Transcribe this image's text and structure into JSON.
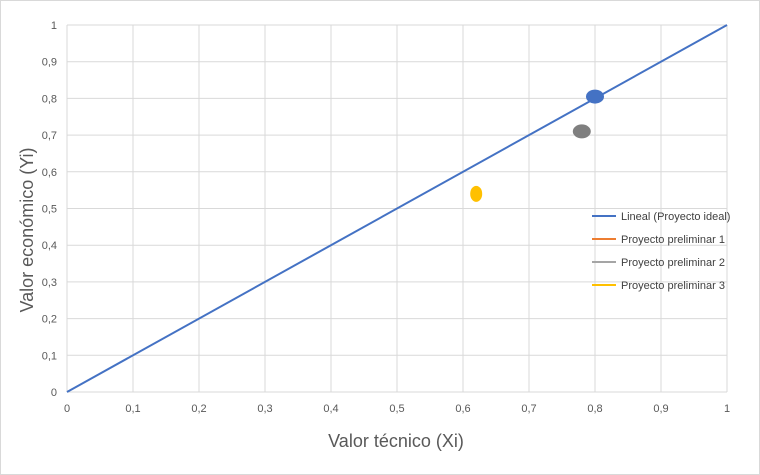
{
  "chart_data": {
    "type": "scatter",
    "title": "",
    "xlabel": "Valor técnico (Xi)",
    "ylabel": "Valor económico (Yi)",
    "xlim": [
      0,
      1
    ],
    "ylim": [
      0,
      1
    ],
    "xticks": [
      "0",
      "0,1",
      "0,2",
      "0,3",
      "0,4",
      "0,5",
      "0,6",
      "0,7",
      "0,8",
      "0,9",
      "1"
    ],
    "yticks": [
      "0",
      "0,1",
      "0,2",
      "0,3",
      "0,4",
      "0,5",
      "0,6",
      "0,7",
      "0,8",
      "0,9",
      "1"
    ],
    "grid": true,
    "legend_position": "right",
    "series": [
      {
        "name": "Lineal (Proyecto ideal)",
        "kind": "line",
        "color": "#4472c4",
        "x": [
          0,
          1
        ],
        "y": [
          0,
          1
        ]
      },
      {
        "name": "Proyecto preliminar 1",
        "kind": "point",
        "color": "#4472c4",
        "legend_color": "#ed7d31",
        "x": [
          0.8
        ],
        "y": [
          0.805
        ]
      },
      {
        "name": "Proyecto preliminar 2",
        "kind": "point",
        "color": "#7f7f7f",
        "legend_color": "#a5a5a5",
        "x": [
          0.78
        ],
        "y": [
          0.71
        ]
      },
      {
        "name": "Proyecto preliminar 3",
        "kind": "point",
        "color": "#ffc000",
        "legend_color": "#ffc000",
        "x": [
          0.62
        ],
        "y": [
          0.54
        ]
      }
    ]
  }
}
